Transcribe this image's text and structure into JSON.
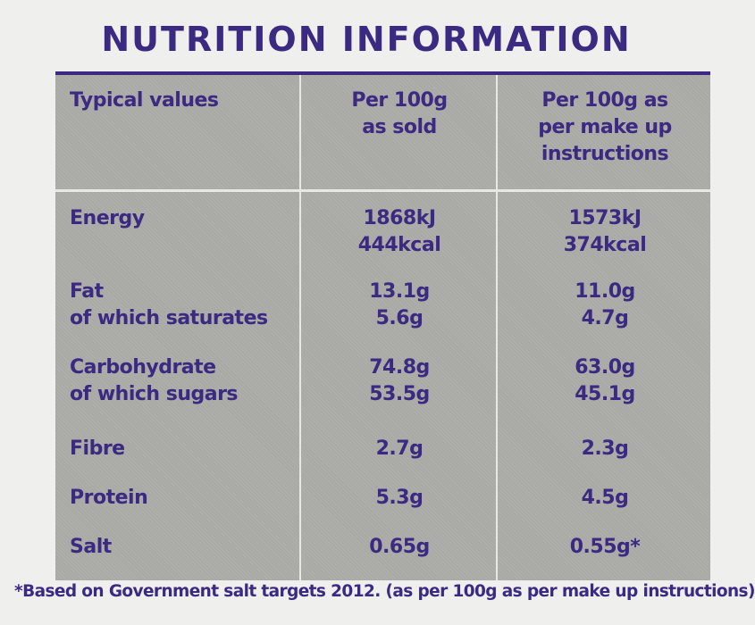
{
  "title": "NUTRITION INFORMATION",
  "header": {
    "col0": "Typical values",
    "col1": [
      "Per 100g",
      "as sold"
    ],
    "col2": [
      "Per 100g as",
      "per make up",
      "instructions"
    ]
  },
  "rows": [
    {
      "labels": [
        "Energy"
      ],
      "sold": [
        "1868kJ",
        "444kcal"
      ],
      "made": [
        "1573kJ",
        "374kcal"
      ]
    },
    {
      "labels": [
        "Fat",
        "of which saturates"
      ],
      "sold": [
        "13.1g",
        "5.6g"
      ],
      "made": [
        "11.0g",
        "4.7g"
      ]
    },
    {
      "labels": [
        "Carbohydrate",
        "of which sugars"
      ],
      "sold": [
        "74.8g",
        "53.5g"
      ],
      "made": [
        "63.0g",
        "45.1g"
      ]
    },
    {
      "labels": [
        "Fibre"
      ],
      "sold": [
        "2.7g"
      ],
      "made": [
        "2.3g"
      ]
    },
    {
      "labels": [
        "Protein"
      ],
      "sold": [
        "5.3g"
      ],
      "made": [
        "4.5g"
      ]
    },
    {
      "labels": [
        "Salt"
      ],
      "sold": [
        "0.65g"
      ],
      "made": [
        "0.55g*"
      ]
    }
  ],
  "footnote": "*Based on Government salt targets 2012. (as per 100g as per make up instructions)",
  "colors": {
    "text": "#3a2a82",
    "table_bg": "#a9a9a5",
    "page_bg": "#efefed"
  }
}
